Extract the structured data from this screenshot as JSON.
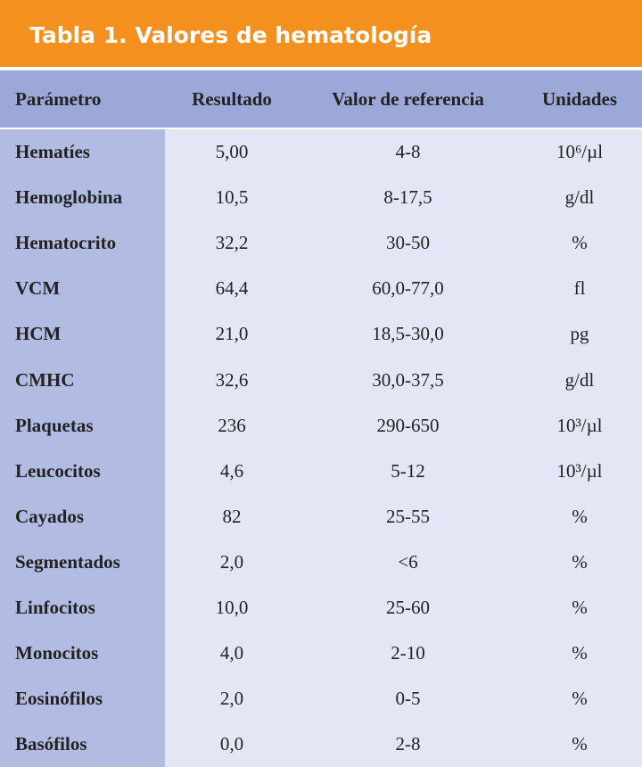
{
  "title": "Tabla 1. Valores de hematología",
  "table": {
    "header": [
      "Parámetro",
      "Resultado",
      "Valor de referencia",
      "Unidades"
    ],
    "rows": [
      [
        "Hematíes",
        "5,00",
        "4-8",
        "10⁶/µl"
      ],
      [
        "Hemoglobina",
        "10,5",
        "8-17,5",
        "g/dl"
      ],
      [
        "Hematocrito",
        "32,2",
        "30-50",
        "%"
      ],
      [
        "VCM",
        "64,4",
        "60,0-77,0",
        "fl"
      ],
      [
        "HCM",
        "21,0",
        "18,5-30,0",
        "pg"
      ],
      [
        "CMHC",
        "32,6",
        "30,0-37,5",
        "g/dl"
      ],
      [
        "Plaquetas",
        "236",
        "290-650",
        "10³/µl"
      ],
      [
        "Leucocitos",
        "4,6",
        "5-12",
        "10³/µl"
      ],
      [
        "Cayados",
        "82",
        "25-55",
        "%"
      ],
      [
        "Segmentados",
        "2,0",
        "<6",
        "%"
      ],
      [
        "Linfocitos",
        "10,0",
        "25-60",
        "%"
      ],
      [
        "Monocitos",
        "4,0",
        "2-10",
        "%"
      ],
      [
        "Eosinófilos",
        "2,0",
        "0-5",
        "%"
      ],
      [
        "Basófilos",
        "0,0",
        "2-8",
        "%"
      ]
    ]
  }
}
